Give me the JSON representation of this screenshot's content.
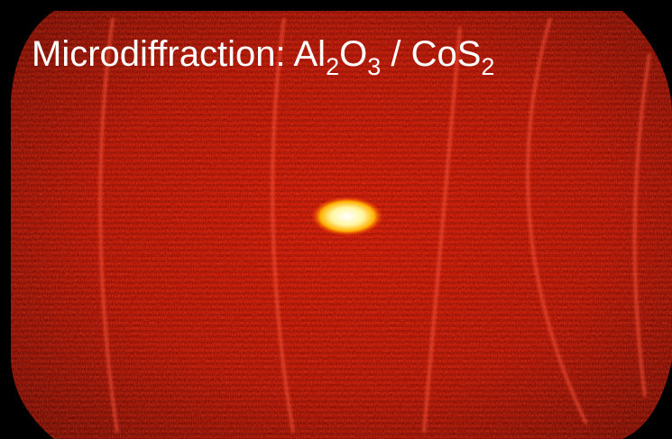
{
  "title": [
    "Microdiffraction: Al",
    "2",
    "O",
    "3",
    " / CoS",
    "2"
  ]
}
